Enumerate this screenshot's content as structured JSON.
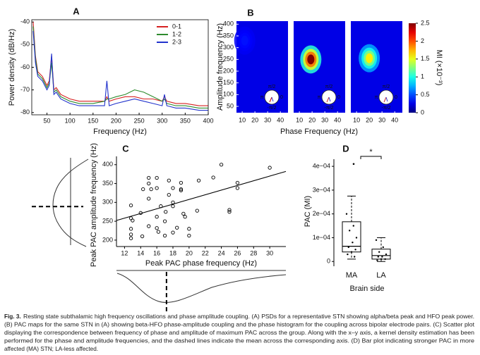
{
  "chart_data": [
    {
      "type": "line",
      "title": "A",
      "xlabel": "Frequency (Hz)",
      "ylabel": "Power density (dB/Hz)",
      "x": [
        20,
        25,
        30,
        40,
        50,
        55,
        60,
        65,
        70,
        80,
        100,
        120,
        150,
        175,
        180,
        185,
        200,
        220,
        240,
        260,
        280,
        300,
        305,
        310,
        330,
        350,
        380,
        400
      ],
      "series": [
        {
          "name": "0-1",
          "color": "#d62020",
          "values": [
            -40,
            -55,
            -62,
            -64,
            -68,
            -66,
            -55,
            -70,
            -69,
            -72,
            -74,
            -75,
            -75,
            -75,
            -73,
            -75,
            -74,
            -73,
            -73,
            -74,
            -74,
            -75,
            -73,
            -75,
            -76,
            -76,
            -77,
            -77
          ]
        },
        {
          "name": "1-2",
          "color": "#2e8b2e",
          "values": [
            -42,
            -56,
            -63,
            -65,
            -69,
            -67,
            -58,
            -71,
            -70,
            -73,
            -75,
            -76,
            -76,
            -75,
            -74,
            -74,
            -73,
            -72,
            -70,
            -71,
            -73,
            -75,
            -74,
            -76,
            -77,
            -77,
            -78,
            -78
          ]
        },
        {
          "name": "2-3",
          "color": "#2233cc",
          "values": [
            -44,
            -58,
            -64,
            -66,
            -70,
            -68,
            -54,
            -72,
            -71,
            -74,
            -76,
            -77,
            -77,
            -77,
            -66,
            -77,
            -76,
            -75,
            -74,
            -75,
            -76,
            -77,
            -72,
            -77,
            -78,
            -78,
            -79,
            -79
          ]
        }
      ],
      "xlim": [
        17,
        400
      ],
      "xticks": [
        50,
        100,
        150,
        200,
        250,
        300,
        350,
        400
      ],
      "ylim": [
        -81,
        -39
      ],
      "yticks": [
        -40,
        -50,
        -60,
        -70,
        -80
      ],
      "legend": "upper right"
    },
    {
      "type": "heatmap",
      "title": "B",
      "xlabel": "Phase Frequency (Hz)",
      "ylabel": "Amplitude frequency (Hz)",
      "colorbar_label": "MI (×10⁻³)",
      "maps": [
        {
          "peak_x": 12,
          "peak_y": 330,
          "peak_value": 0.35
        },
        {
          "peak_x": 19,
          "peak_y": 250,
          "peak_value": 2.5
        },
        {
          "peak_x": 20,
          "peak_y": 255,
          "peak_value": 1.6
        }
      ],
      "polar_labels": [
        "π/2",
        "π",
        "0",
        "-π/2"
      ],
      "xlim": [
        5.5,
        46
      ],
      "xticks": [
        10,
        20,
        30,
        40
      ],
      "ylim": [
        23,
        413
      ],
      "yticks": [
        50,
        100,
        150,
        200,
        250,
        300,
        350,
        400
      ],
      "clim": [
        0,
        2.5
      ],
      "cticks": [
        0,
        0.5,
        1,
        1.5,
        2,
        2.5
      ]
    },
    {
      "type": "scatter",
      "title": "C",
      "xlabel": "Peak PAC phase frequency (Hz)",
      "ylabel": "Peak PAC amplitude frequency (Hz)",
      "x": [
        12.8,
        12.8,
        12.8,
        12.8,
        12.8,
        13,
        14,
        14.3,
        14.2,
        15,
        15,
        15,
        15,
        15.3,
        16,
        16,
        16,
        16,
        16.2,
        16.5,
        17,
        17,
        17.1,
        17.5,
        17.5,
        18,
        18,
        18,
        18,
        18.5,
        19,
        19,
        19,
        19.3,
        19.5,
        20,
        20,
        21,
        21.2,
        23,
        24,
        25,
        25,
        26,
        26,
        30
      ],
      "y": [
        292,
        258,
        230,
        215,
        205,
        252,
        272,
        335,
        210,
        350,
        365,
        310,
        237,
        335,
        262,
        232,
        365,
        338,
        222,
        290,
        250,
        212,
        275,
        320,
        358,
        338,
        300,
        220,
        290,
        233,
        352,
        332,
        335,
        270,
        262,
        230,
        212,
        278,
        358,
        366,
        400,
        280,
        275,
        352,
        338,
        392
      ],
      "fit_slope": 6.19,
      "fit_intercept": 184,
      "mean_x": 17.2,
      "mean_y": 289,
      "xlim": [
        11,
        32
      ],
      "xticks": [
        12,
        14,
        16,
        18,
        20,
        22,
        24,
        26,
        28,
        30
      ],
      "ylim": [
        183,
        422
      ],
      "yticks": [
        200,
        250,
        300,
        350,
        400
      ]
    },
    {
      "type": "box",
      "title": "D",
      "xlabel": "Brain side",
      "ylabel": "PAC (MI)",
      "annotation": "*",
      "categories": [
        "MA",
        "LA"
      ],
      "boxes": [
        {
          "min": 1e-05,
          "q1": 4e-05,
          "median": 6.4e-05,
          "q3": 0.000167,
          "max": 0.000275,
          "outliers": [
            0.00041
          ],
          "points": [
            0.0002,
            0.00015,
            0.00013,
            0.0001,
            8e-05,
            6e-05,
            5e-05,
            4e-05,
            3e-05,
            2e-05
          ]
        },
        {
          "min": 0,
          "q1": 1e-05,
          "median": 2.5e-05,
          "q3": 5.2e-05,
          "max": 0.0001,
          "outliers": [],
          "points": [
            9e-05,
            6e-05,
            4e-05,
            3e-05,
            2e-05,
            2e-05,
            1e-05,
            1e-05,
            5e-06
          ]
        }
      ],
      "ylim": [
        -2e-05,
        0.00043
      ],
      "yticks": [
        0,
        {
          "value": 0.0001,
          "label": "1e−04"
        },
        {
          "value": 0.0002,
          "label": "2e−04"
        },
        {
          "value": 0.0003,
          "label": "3e−04"
        },
        {
          "value": 0.0004,
          "label": "4e−04"
        }
      ]
    }
  ],
  "caption": {
    "label": "Fig. 3.",
    "lines": [
      "Resting state subthalamic high frequency oscillations and phase amplitude coupling. (A) PSDs for a representative STN showing alpha/beta peak and HFO peak power.",
      "(B) PAC maps for the same STN in (A) showing beta-HFO phase-amplitude coupling and the phase histogram for the coupling across bipolar electrode pairs. (C) Scatter plot",
      "displaying the correspondence between frequency of phase and amplitude of maximum PAC across the group. Along with the x–y axis, a kernel density estimation has been",
      "performed for the phase and amplitude frequencies, and the dashed lines indicate the mean across the corresponding axis. (D) Bar plot indicating stronger PAC in more",
      "affected (MA) STN; LA-less affected."
    ]
  }
}
